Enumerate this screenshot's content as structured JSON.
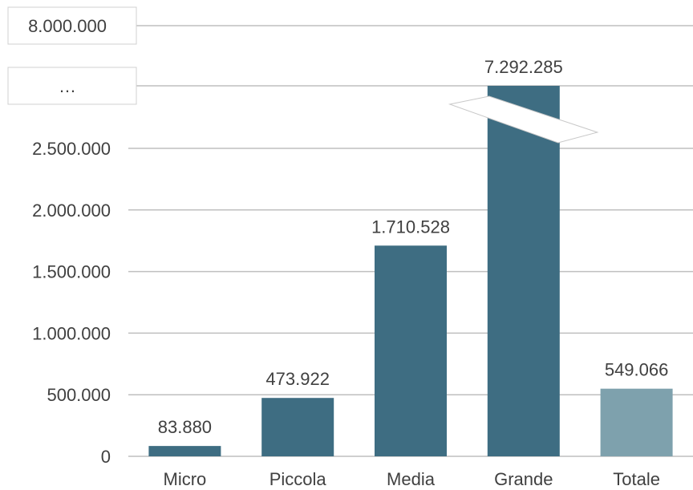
{
  "chart_data": {
    "type": "bar",
    "title": "",
    "xlabel": "",
    "ylabel": "",
    "categories": [
      "Micro",
      "Piccola",
      "Media",
      "Grande",
      "Totale"
    ],
    "values": [
      83880,
      473922,
      1710528,
      7292285,
      549066
    ],
    "value_labels": [
      "83.880",
      "473.922",
      "1.710.528",
      "7.292.285",
      "549.066"
    ],
    "ylim": [
      0,
      2500000
    ],
    "axis_break": true,
    "y_ticks": [
      {
        "value": 0,
        "label": "0"
      },
      {
        "value": 500000,
        "label": "500.000"
      },
      {
        "value": 1000000,
        "label": "1.000.000"
      },
      {
        "value": 1500000,
        "label": "1.500.000"
      },
      {
        "value": 2000000,
        "label": "2.000.000"
      },
      {
        "value": 2500000,
        "label": "2.500.000"
      }
    ],
    "y_break_labels": [
      "…",
      "8.000.000"
    ],
    "grid": true,
    "legend": "none",
    "colors": {
      "bar": "#3e6d82",
      "bar_total": "#7ea1ad",
      "grid": "#bfbfbf",
      "text": "#404040"
    }
  }
}
